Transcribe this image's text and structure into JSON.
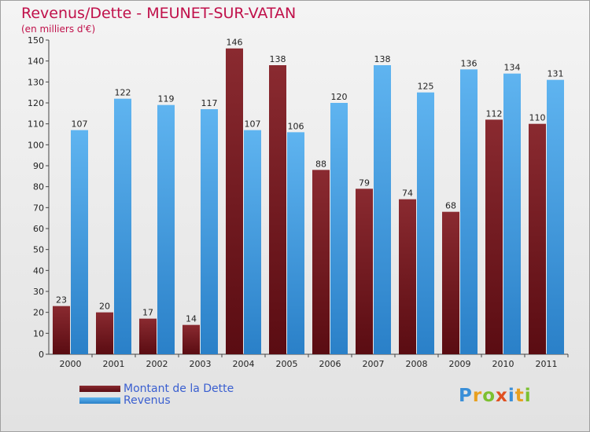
{
  "chart_data": {
    "type": "bar",
    "title": "Revenus/Dette - MEUNET-SUR-VATAN",
    "subtitle": "(en milliers d'€)",
    "categories": [
      "2000",
      "2001",
      "2002",
      "2003",
      "2004",
      "2005",
      "2006",
      "2007",
      "2008",
      "2009",
      "2010",
      "2011"
    ],
    "series": [
      {
        "name": "Montant de la Dette",
        "color": "#6e1a20",
        "values": [
          23,
          20,
          17,
          14,
          146,
          138,
          88,
          79,
          74,
          68,
          112,
          110
        ]
      },
      {
        "name": "Revenus",
        "color": "#3e9be0",
        "values": [
          107,
          122,
          119,
          117,
          107,
          106,
          120,
          138,
          125,
          136,
          134,
          131
        ]
      }
    ],
    "ylim": [
      0,
      150
    ],
    "yticks": [
      0,
      10,
      20,
      30,
      40,
      50,
      60,
      70,
      80,
      90,
      100,
      110,
      120,
      130,
      140,
      150
    ],
    "grid": false,
    "legend": "bottom-left"
  },
  "brand": {
    "letters": [
      "P",
      "r",
      "o",
      "x",
      "i",
      "t",
      "i"
    ],
    "colors": [
      "#3a8fd8",
      "#e8a020",
      "#7cc030",
      "#e05020",
      "#3a8fd8",
      "#e8a020",
      "#7cc030"
    ]
  }
}
